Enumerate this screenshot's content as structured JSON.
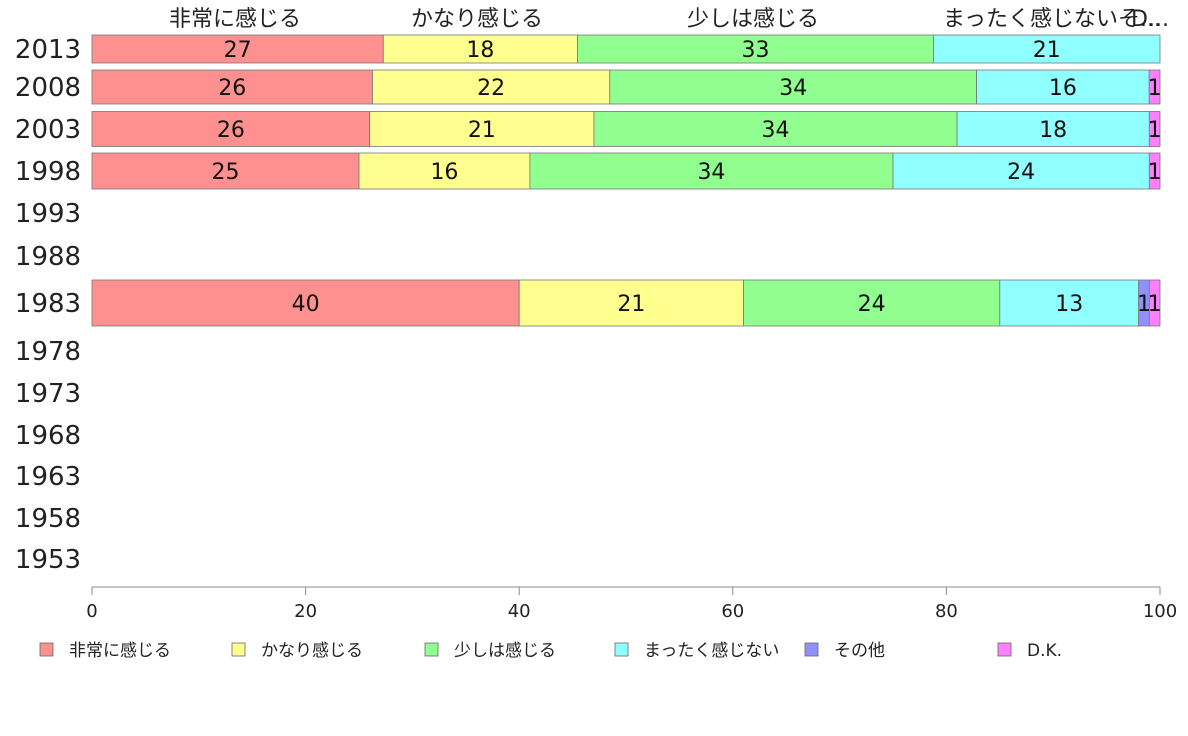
{
  "chart_data": {
    "type": "bar",
    "orientation": "horizontal",
    "stacked": true,
    "categories": [
      "2013",
      "2008",
      "2003",
      "1998",
      "1993",
      "1988",
      "1983",
      "1978",
      "1973",
      "1968",
      "1963",
      "1958",
      "1953"
    ],
    "series": [
      {
        "name": "非常に感じる",
        "color": "#ff9090",
        "values": [
          27,
          26,
          26,
          25,
          null,
          null,
          40,
          null,
          null,
          null,
          null,
          null,
          null
        ]
      },
      {
        "name": "かなり感じる",
        "color": "#ffff90",
        "values": [
          18,
          22,
          21,
          16,
          null,
          null,
          21,
          null,
          null,
          null,
          null,
          null,
          null
        ]
      },
      {
        "name": "少しは感じる",
        "color": "#90ff90",
        "values": [
          33,
          34,
          34,
          34,
          null,
          null,
          24,
          null,
          null,
          null,
          null,
          null,
          null
        ]
      },
      {
        "name": "まったく感じない",
        "color": "#90ffff",
        "values": [
          21,
          16,
          18,
          24,
          null,
          null,
          13,
          null,
          null,
          null,
          null,
          null,
          null
        ]
      },
      {
        "name": "その他",
        "color": "#9090ff",
        "values": [
          0,
          0,
          0,
          0,
          null,
          null,
          1,
          null,
          null,
          null,
          null,
          null,
          null
        ]
      },
      {
        "name": "D.K.",
        "color": "#ff80ff",
        "values": [
          0,
          1,
          1,
          1,
          null,
          null,
          1,
          null,
          null,
          null,
          null,
          null,
          null
        ]
      }
    ],
    "top_labels": [
      "非常に感じる",
      "かなり感じる",
      "少しは感じる",
      "まったく感じないそ...",
      "D..."
    ],
    "x_ticks": [
      "0",
      "20",
      "40",
      "60",
      "80",
      "100"
    ],
    "xlim": [
      0,
      100
    ],
    "legend_position": "bottom",
    "grid": false
  }
}
